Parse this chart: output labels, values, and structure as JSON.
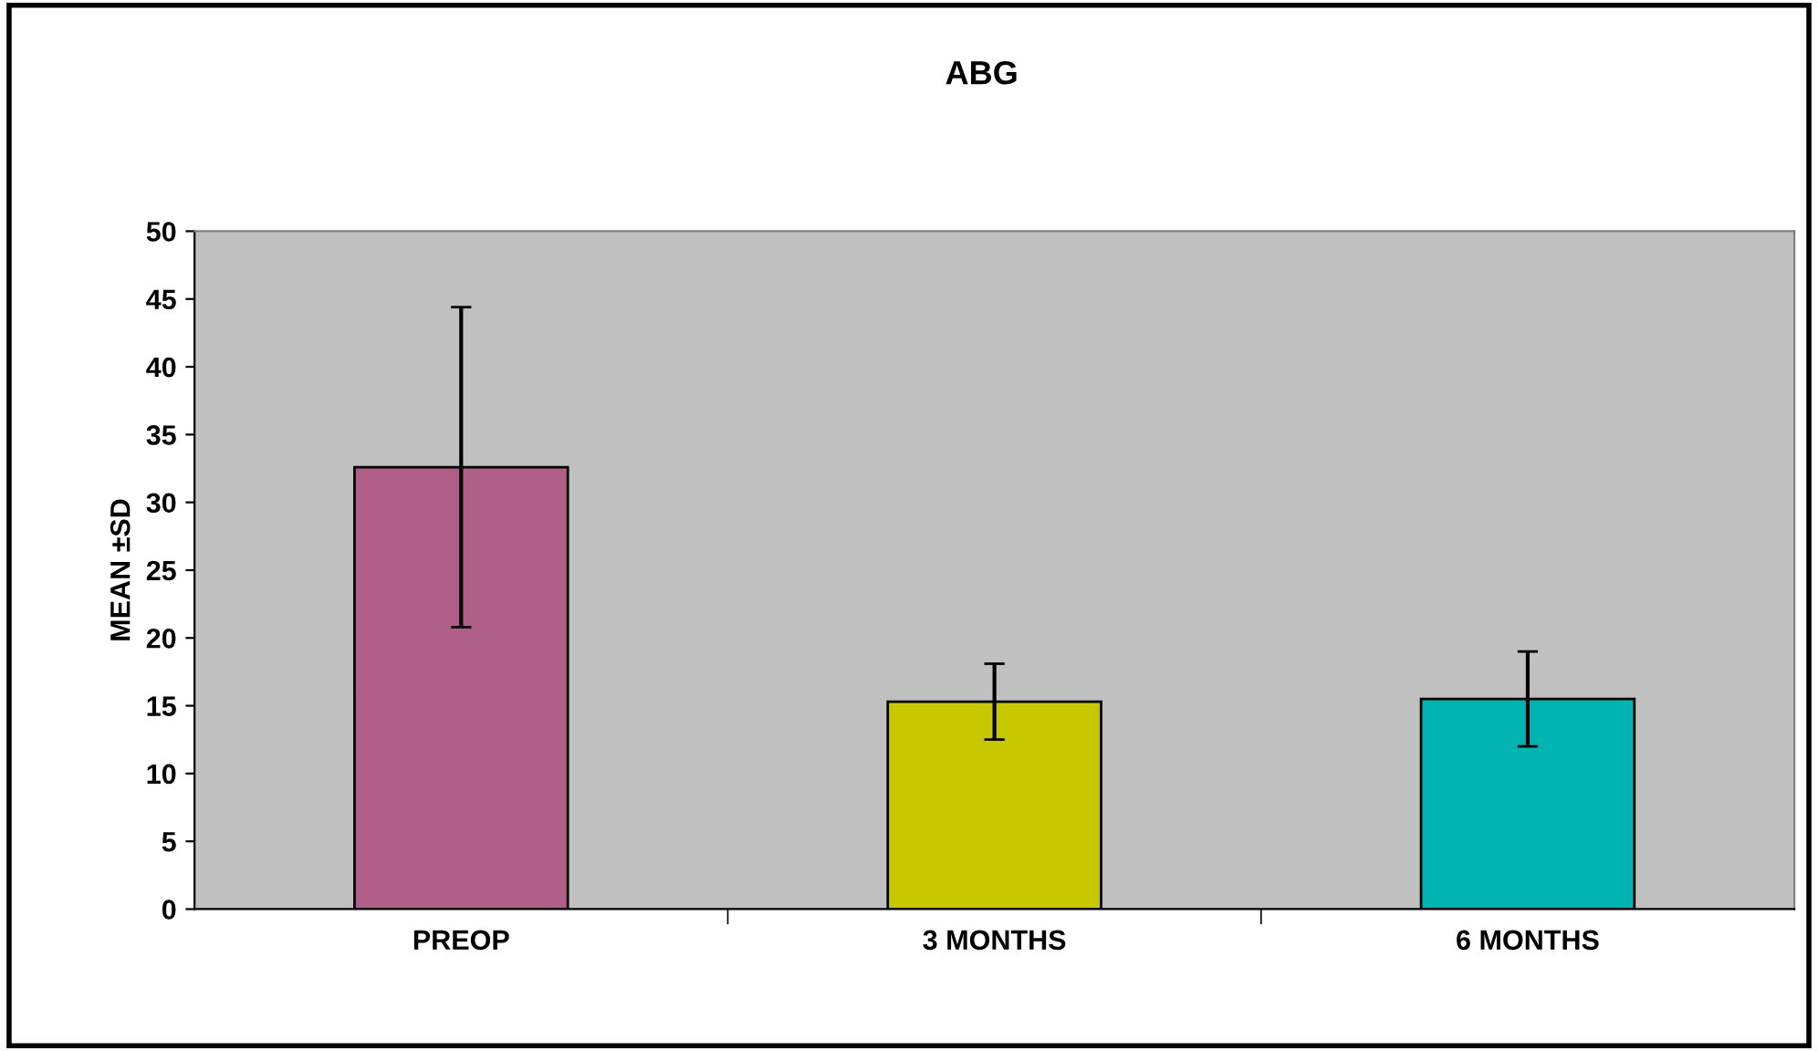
{
  "chart_data": {
    "type": "bar",
    "title": "ABG",
    "ylabel": "MEAN ±SD",
    "categories": [
      "PREOP",
      "3 MONTHS",
      "6 MONTHS"
    ],
    "values": [
      32.6,
      15.3,
      15.5
    ],
    "errors": [
      11.8,
      2.8,
      3.5
    ],
    "colors": [
      "#b06088",
      "#c8c800",
      "#00b4b4"
    ],
    "ylim": [
      0,
      50
    ],
    "yticks": [
      0,
      5,
      10,
      15,
      20,
      25,
      30,
      35,
      40,
      45,
      50
    ],
    "grid": false
  }
}
